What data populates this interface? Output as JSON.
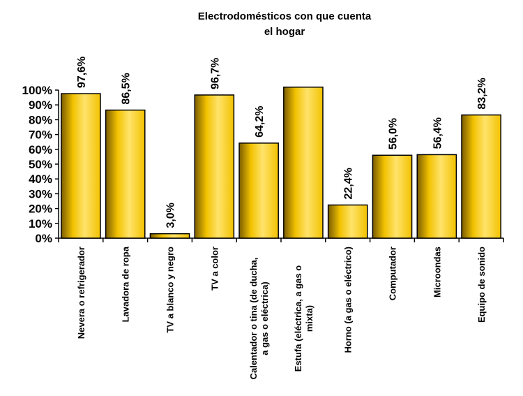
{
  "chart_data": {
    "type": "bar",
    "title_lines": [
      "Electrodomésticos con que cuenta",
      "el hogar"
    ],
    "categories": [
      [
        "Nevera o refrigerador"
      ],
      [
        "Lavadora de ropa"
      ],
      [
        "TV a blanco y negro"
      ],
      [
        "TV a color"
      ],
      [
        "Calentador o tina (de ducha,",
        "a gas o eléctrica)"
      ],
      [
        "Estufa (eléctrica, a gas o",
        "mixta)"
      ],
      [
        "Horno (a gas o eléctrico)"
      ],
      [
        "Computador"
      ],
      [
        "Microondas"
      ],
      [
        "Equipo  de sonido"
      ]
    ],
    "values": [
      97.6,
      86.5,
      3.0,
      96.7,
      64.2,
      102,
      22.4,
      56.0,
      56.4,
      83.2
    ],
    "data_labels": [
      "97,6%",
      "86,5%",
      "3,0%",
      "96,7%",
      "64,2%",
      "",
      "22,4%",
      "56,0%",
      "56,4%",
      "83,2%"
    ],
    "yticks": [
      "0%",
      "10%",
      "20%",
      "30%",
      "40%",
      "50%",
      "60%",
      "70%",
      "80%",
      "90%",
      "100%"
    ],
    "ylim": [
      0,
      100
    ],
    "xlabel": "",
    "ylabel": "",
    "grid": false,
    "legend": "none",
    "colors": {
      "bar_edge": "#000000",
      "bar_dark": "#7a5c00",
      "bar_mid": "#f2c200",
      "bar_light": "#ffe36b",
      "axis": "#000000"
    }
  }
}
